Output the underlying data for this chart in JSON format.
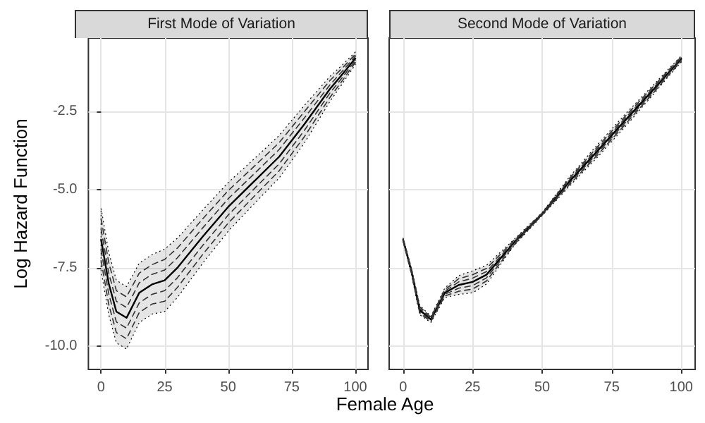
{
  "chart_data": [
    {
      "type": "line",
      "title": "First Mode of Variation",
      "xlabel": "Female Age",
      "ylabel": "Log Hazard Function",
      "xlim": [
        -5,
        105
      ],
      "xticks": [
        0,
        25,
        50,
        75,
        100
      ],
      "ylim": [
        -10.75,
        -0.15
      ],
      "yticks": [
        {
          "value": -10,
          "label": "-10.0"
        },
        {
          "value": -7.5,
          "label": "-7.5"
        },
        {
          "value": -5,
          "label": "-5.0"
        },
        {
          "value": -2.5,
          "label": "-2.5"
        }
      ],
      "grid": true,
      "x": [
        0,
        3,
        6,
        10,
        15,
        20,
        25,
        30,
        40,
        50,
        60,
        70,
        80,
        90,
        95,
        100
      ],
      "series": [
        {
          "color": "#000000",
          "line_style": "solid",
          "values": [
            -6.6,
            -8.0,
            -8.9,
            -9.1,
            -8.3,
            -8.03,
            -7.9,
            -7.5,
            -6.5,
            -5.55,
            -4.75,
            -3.95,
            -2.9,
            -1.78,
            -1.3,
            -0.8
          ],
          "upper": [
            -5.6,
            -7.0,
            -7.9,
            -8.1,
            -7.35,
            -7.08,
            -6.9,
            -6.55,
            -5.65,
            -4.77,
            -4.03,
            -3.27,
            -2.3,
            -1.38,
            -1.0,
            -0.6
          ],
          "lower": [
            -7.6,
            -9.0,
            -9.9,
            -10.1,
            -9.25,
            -8.98,
            -8.9,
            -8.45,
            -7.35,
            -6.33,
            -5.47,
            -4.63,
            -3.5,
            -2.18,
            -1.6,
            -1.0
          ]
        },
        {
          "color": "#333333",
          "line_style": "dashed",
          "values": [
            -5.93,
            -7.33,
            -8.23,
            -8.43,
            -7.67,
            -7.4,
            -7.23,
            -6.87,
            -5.93,
            -5.03,
            -4.27,
            -3.5,
            -2.5,
            -1.51,
            -1.1,
            -0.67
          ]
        },
        {
          "color": "#333333",
          "line_style": "dashed",
          "values": [
            -6.27,
            -7.67,
            -8.57,
            -8.77,
            -7.98,
            -7.71,
            -7.57,
            -7.18,
            -6.22,
            -5.29,
            -4.51,
            -3.72,
            -2.7,
            -1.65,
            -1.2,
            -0.73
          ]
        },
        {
          "color": "#333333",
          "line_style": "dashed",
          "values": [
            -6.93,
            -8.33,
            -9.23,
            -9.43,
            -8.62,
            -8.35,
            -8.23,
            -7.82,
            -6.78,
            -5.81,
            -4.99,
            -4.18,
            -3.1,
            -1.91,
            -1.4,
            -0.87
          ]
        },
        {
          "color": "#333333",
          "line_style": "dashed",
          "values": [
            -7.27,
            -8.67,
            -9.57,
            -9.77,
            -8.93,
            -8.66,
            -8.57,
            -8.13,
            -7.07,
            -6.07,
            -5.23,
            -4.4,
            -3.3,
            -2.05,
            -1.5,
            -0.93
          ]
        }
      ]
    },
    {
      "type": "line",
      "title": "Second Mode of Variation",
      "tick_labels": "x",
      "xlim": [
        -5,
        105
      ],
      "xticks": [
        0,
        25,
        50,
        75,
        100
      ],
      "ylim": [
        -10.75,
        -0.15
      ],
      "yticks": [
        {
          "value": -10,
          "label": null
        },
        {
          "value": -7.5,
          "label": null
        },
        {
          "value": -5,
          "label": null
        },
        {
          "value": -2.5,
          "label": null
        }
      ],
      "grid": true,
      "x": [
        0,
        3,
        6,
        10,
        15,
        20,
        25,
        30,
        40,
        50,
        60,
        70,
        80,
        90,
        95,
        100
      ],
      "series": [
        {
          "color": "#000000",
          "line_style": "solid",
          "values": [
            -6.6,
            -7.6,
            -8.85,
            -9.15,
            -8.3,
            -8.05,
            -7.95,
            -7.72,
            -6.68,
            -5.78,
            -4.72,
            -3.75,
            -2.77,
            -1.8,
            -1.3,
            -0.82
          ],
          "upper": [
            -6.55,
            -7.5,
            -8.7,
            -9.05,
            -8.15,
            -7.75,
            -7.6,
            -7.42,
            -6.58,
            -5.73,
            -4.57,
            -3.55,
            -2.57,
            -1.65,
            -1.18,
            -0.72
          ],
          "lower": [
            -6.65,
            -7.7,
            -9.0,
            -9.25,
            -8.45,
            -8.35,
            -8.3,
            -8.02,
            -6.78,
            -5.83,
            -4.87,
            -3.95,
            -2.97,
            -1.95,
            -1.42,
            -0.92
          ]
        },
        {
          "color": "#333333",
          "line_style": "dashed",
          "values": [
            -6.57,
            -7.53,
            -8.75,
            -9.08,
            -8.2,
            -7.85,
            -7.72,
            -7.52,
            -6.61,
            -5.75,
            -4.62,
            -3.62,
            -2.64,
            -1.7,
            -1.22,
            -0.75
          ]
        },
        {
          "color": "#333333",
          "line_style": "dashed",
          "values": [
            -6.58,
            -7.57,
            -8.8,
            -9.12,
            -8.25,
            -7.95,
            -7.83,
            -7.62,
            -6.65,
            -5.76,
            -4.67,
            -3.68,
            -2.7,
            -1.75,
            -1.26,
            -0.79
          ]
        },
        {
          "color": "#333333",
          "line_style": "dashed",
          "values": [
            -6.62,
            -7.63,
            -8.9,
            -9.18,
            -8.35,
            -8.15,
            -8.07,
            -7.82,
            -6.71,
            -5.8,
            -4.77,
            -3.82,
            -2.84,
            -1.85,
            -1.34,
            -0.85
          ]
        },
        {
          "color": "#333333",
          "line_style": "dashed",
          "values": [
            -6.63,
            -7.67,
            -8.95,
            -9.22,
            -8.4,
            -8.25,
            -8.18,
            -7.92,
            -6.75,
            -5.81,
            -4.82,
            -3.88,
            -2.9,
            -1.9,
            -1.38,
            -0.89
          ]
        }
      ]
    }
  ]
}
